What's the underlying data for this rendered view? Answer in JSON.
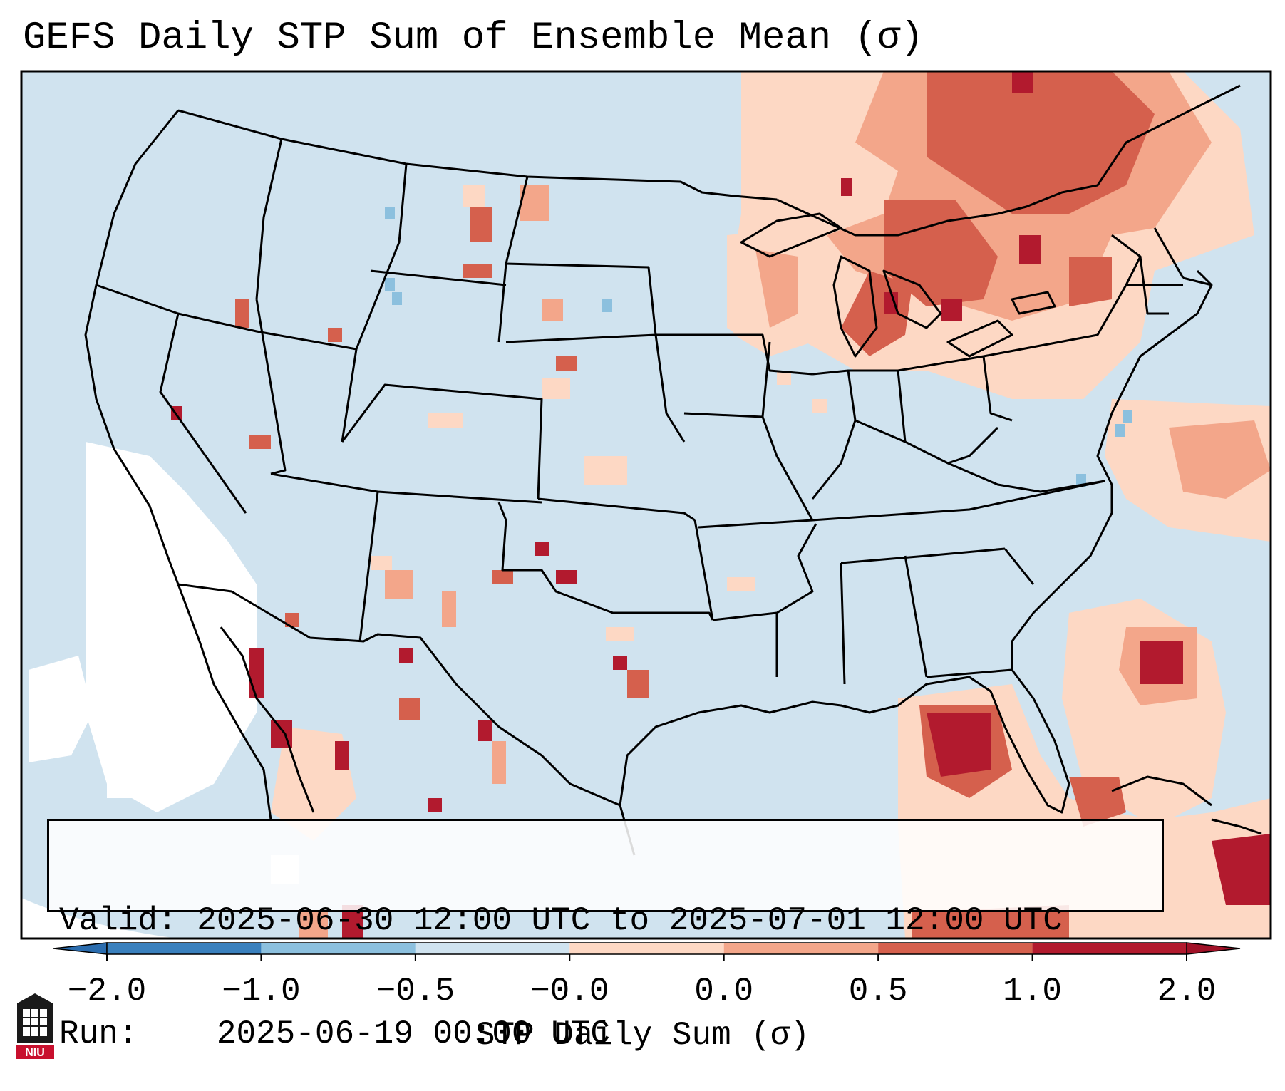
{
  "title": "GEFS Daily STP Sum of Ensemble Mean (σ)",
  "info": {
    "valid_label": "Valid:",
    "valid_value": "2025-06-30 12:00 UTC to 2025-07-01 12:00 UTC",
    "run_label": "Run:",
    "run_value": "2025-06-19 00:00 UTC"
  },
  "colorbar": {
    "label": "STP Daily Sum (σ)",
    "ticks": [
      "−2.0",
      "−1.0",
      "−0.5",
      "−0.0",
      "0.0",
      "0.5",
      "1.0",
      "2.0"
    ],
    "colors": [
      "#3a80bd",
      "#8cc0de",
      "#d0e3ef",
      "#f7f7f7",
      "#fdd8c4",
      "#f3a68a",
      "#d5604d",
      "#b21a2e"
    ],
    "extend_low_color": "#2a6cae",
    "extend_high_color": "#a01127"
  },
  "colors": {
    "ocean_land_base": "#d0e3ef",
    "positive_light": "#fdd8c4",
    "positive_medium": "#f3a68a",
    "positive_strong": "#d5604d",
    "positive_max": "#b21a2e",
    "negative_light": "#8cc0de",
    "near_zero": "#ffffff"
  },
  "logo": {
    "text": "NIU"
  }
}
